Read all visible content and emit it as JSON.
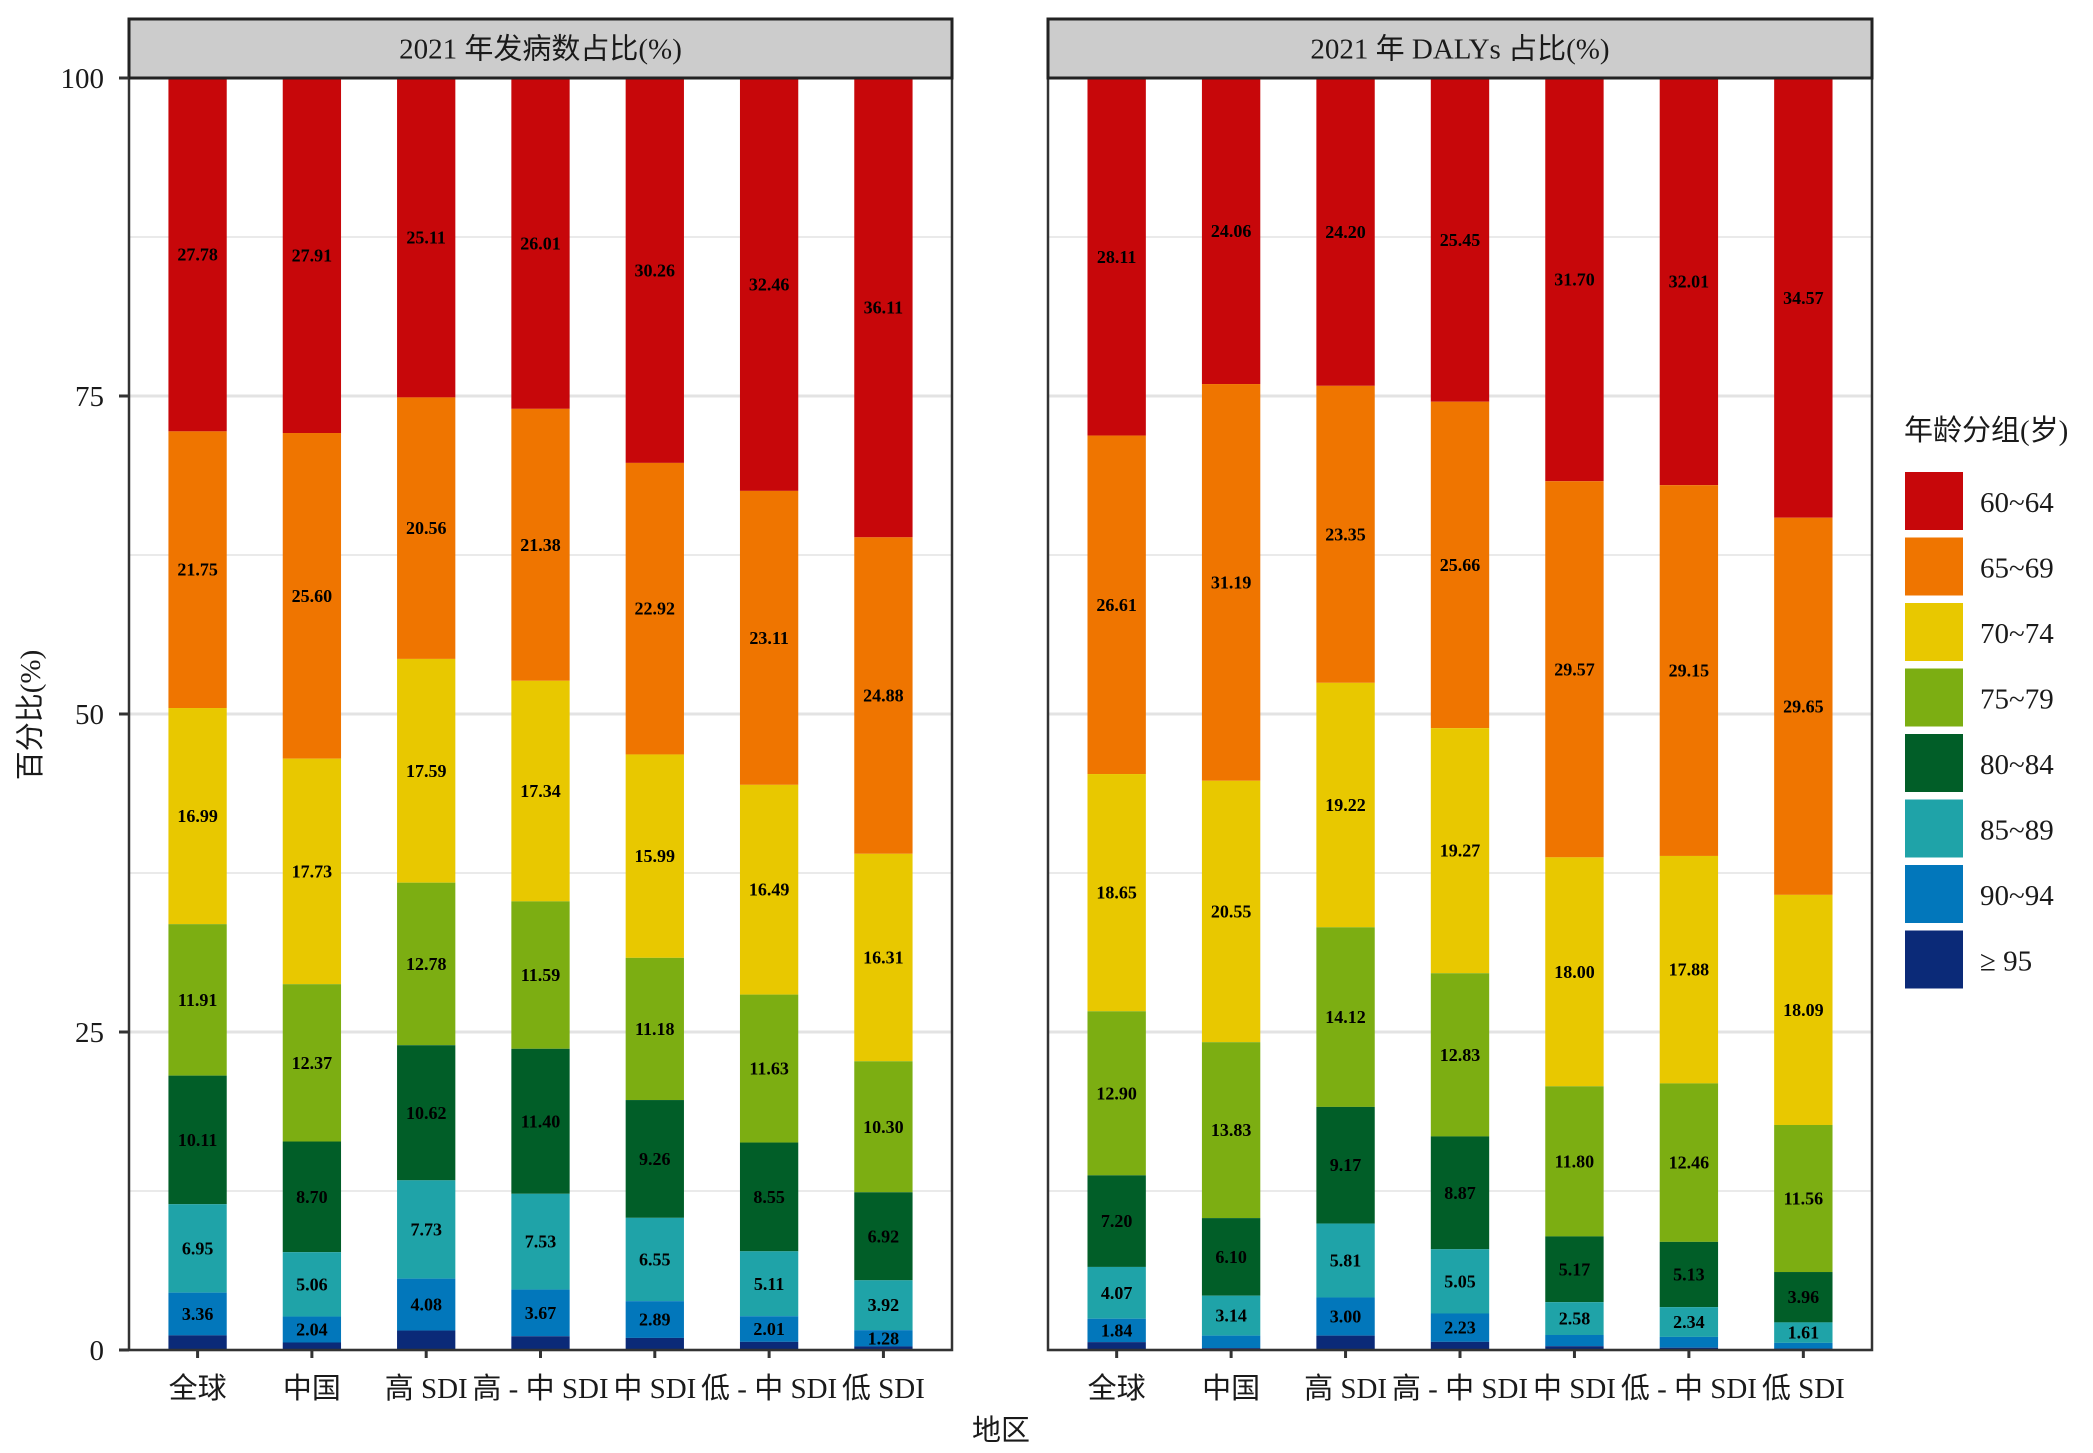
{
  "chart_data": {
    "type": "bar",
    "stacked": true,
    "ylabel": "百分比(%)",
    "xlabel": "地区",
    "ylim": [
      0,
      100
    ],
    "yticks": [
      "0",
      "25",
      "50",
      "75",
      "100"
    ],
    "ytick_values": [
      0,
      25,
      50,
      75,
      100
    ],
    "grid": true,
    "legend": {
      "title": "年龄分组(岁)",
      "placement": "right",
      "entries": [
        "60~64",
        "65~69",
        "70~74",
        "75~79",
        "80~84",
        "85~89",
        "90~94",
        "≥ 95"
      ],
      "colors": [
        "#c7070a",
        "#ef7500",
        "#e8c800",
        "#7cae12",
        "#015e28",
        "#1fa3a8",
        "#0277bb",
        "#0b2a78"
      ]
    },
    "categories": [
      "全球",
      "中国",
      "高 SDI",
      "高 - 中 SDI",
      "中 SDI",
      "低 - 中 SDI",
      "低 SDI"
    ],
    "panels": [
      {
        "title": "2021 年发病数占比(%)",
        "series": [
          {
            "name": "60~64",
            "values": [
              27.78,
              27.91,
              25.11,
              26.01,
              30.26,
              32.46,
              36.11
            ],
            "labels": [
              "27.78",
              "27.91",
              "25.11",
              "26.01",
              "30.26",
              "32.46",
              "36.11"
            ]
          },
          {
            "name": "65~69",
            "values": [
              21.75,
              25.6,
              20.56,
              21.38,
              22.92,
              23.11,
              24.88
            ],
            "labels": [
              "21.75",
              "25.60",
              "20.56",
              "21.38",
              "22.92",
              "23.11",
              "24.88"
            ]
          },
          {
            "name": "70~74",
            "values": [
              16.99,
              17.73,
              17.59,
              17.34,
              15.99,
              16.49,
              16.31
            ],
            "labels": [
              "16.99",
              "17.73",
              "17.59",
              "17.34",
              "15.99",
              "16.49",
              "16.31"
            ]
          },
          {
            "name": "75~79",
            "values": [
              11.91,
              12.37,
              12.78,
              11.59,
              11.18,
              11.63,
              10.3
            ],
            "labels": [
              "11.91",
              "12.37",
              "12.78",
              "11.59",
              "11.18",
              "11.63",
              "10.30"
            ]
          },
          {
            "name": "80~84",
            "values": [
              10.11,
              8.7,
              10.62,
              11.4,
              9.26,
              8.55,
              6.92
            ],
            "labels": [
              "10.11",
              "8.70",
              "10.62",
              "11.40",
              "9.26",
              "8.55",
              "6.92"
            ]
          },
          {
            "name": "85~89",
            "values": [
              6.95,
              5.06,
              7.73,
              7.53,
              6.55,
              5.11,
              3.92
            ],
            "labels": [
              "6.95",
              "5.06",
              "7.73",
              "7.53",
              "6.55",
              "5.11",
              "3.92"
            ]
          },
          {
            "name": "90~94",
            "values": [
              3.36,
              2.04,
              4.08,
              3.67,
              2.89,
              2.01,
              1.28
            ],
            "labels": [
              "3.36",
              "2.04",
              "4.08",
              "3.67",
              "2.89",
              "2.01",
              "1.28"
            ]
          },
          {
            "name": "≥ 95",
            "values": [
              1.15,
              0.59,
              1.53,
              1.08,
              0.95,
              0.64,
              0.28
            ],
            "labels": [
              null,
              null,
              null,
              null,
              null,
              null,
              null
            ]
          }
        ]
      },
      {
        "title": "2021 年 DALYs 占比(%)",
        "series": [
          {
            "name": "60~64",
            "values": [
              28.11,
              24.06,
              24.2,
              25.45,
              31.7,
              32.01,
              34.57
            ],
            "labels": [
              "28.11",
              "24.06",
              "24.20",
              "25.45",
              "31.70",
              "32.01",
              "34.57"
            ]
          },
          {
            "name": "65~69",
            "values": [
              26.61,
              31.19,
              23.35,
              25.66,
              29.57,
              29.15,
              29.65
            ],
            "labels": [
              "26.61",
              "31.19",
              "23.35",
              "25.66",
              "29.57",
              "29.15",
              "29.65"
            ]
          },
          {
            "name": "70~74",
            "values": [
              18.65,
              20.55,
              19.22,
              19.27,
              18.0,
              17.88,
              18.09
            ],
            "labels": [
              "18.65",
              "20.55",
              "19.22",
              "19.27",
              "18.00",
              "17.88",
              "18.09"
            ]
          },
          {
            "name": "75~79",
            "values": [
              12.9,
              13.83,
              14.12,
              12.83,
              11.8,
              12.46,
              11.56
            ],
            "labels": [
              "12.90",
              "13.83",
              "14.12",
              "12.83",
              "11.80",
              "12.46",
              "11.56"
            ]
          },
          {
            "name": "80~84",
            "values": [
              7.2,
              6.1,
              9.17,
              8.87,
              5.17,
              5.13,
              3.96
            ],
            "labels": [
              "7.20",
              "6.10",
              "9.17",
              "8.87",
              "5.17",
              "5.13",
              "3.96"
            ]
          },
          {
            "name": "85~89",
            "values": [
              4.07,
              3.14,
              5.81,
              5.05,
              2.58,
              2.34,
              1.61
            ],
            "labels": [
              "4.07",
              "3.14",
              "5.81",
              "5.05",
              "2.58",
              "2.34",
              "1.61"
            ]
          },
          {
            "name": "90~94",
            "values": [
              1.84,
              0.98,
              3.0,
              2.23,
              0.88,
              0.85,
              0.45
            ],
            "labels": [
              "1.84",
              null,
              "3.00",
              "2.23",
              null,
              null,
              null
            ]
          },
          {
            "name": "≥ 95",
            "values": [
              0.62,
              0.15,
              1.13,
              0.64,
              0.3,
              0.18,
              0.11
            ],
            "labels": [
              null,
              null,
              null,
              null,
              null,
              null,
              null
            ]
          }
        ]
      }
    ]
  }
}
